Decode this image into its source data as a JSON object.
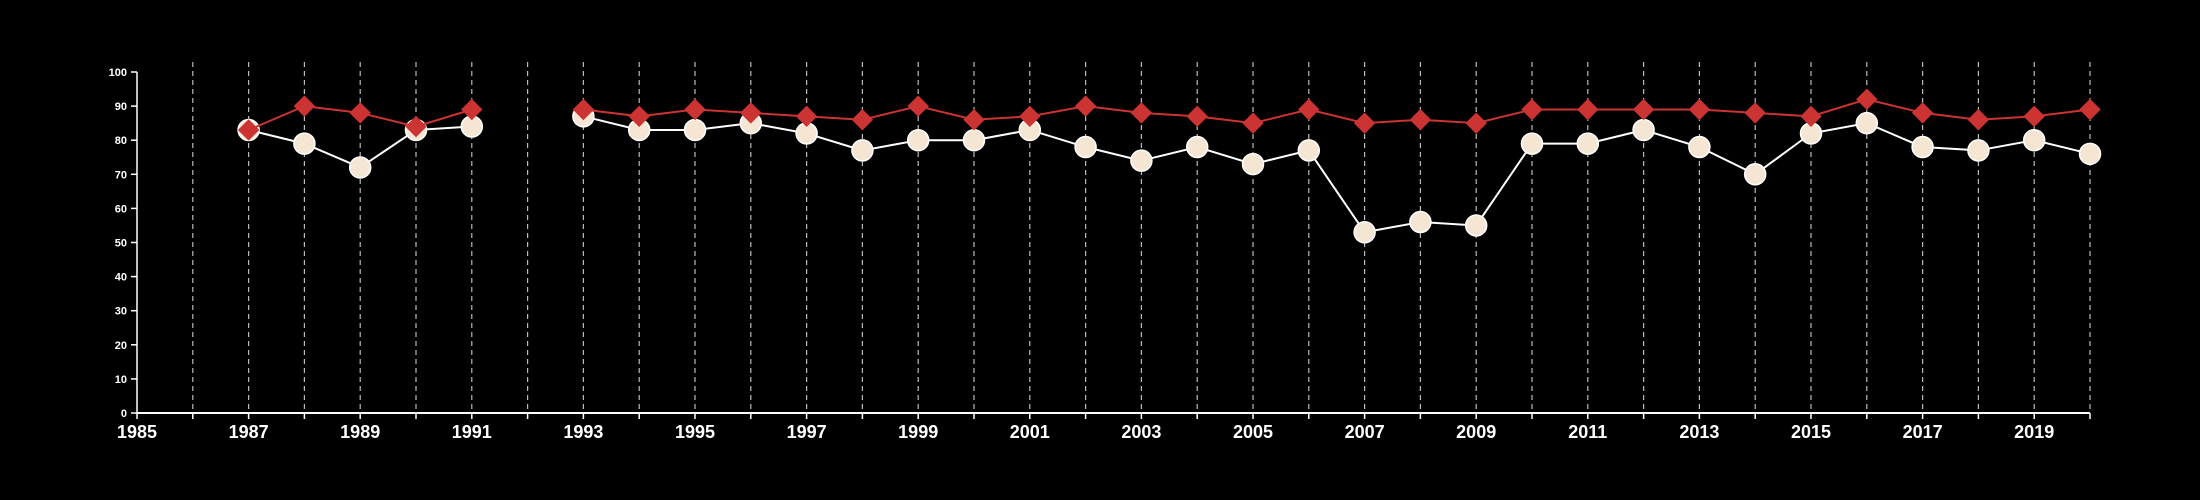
{
  "chart_data": {
    "type": "line",
    "xlim": [
      1985,
      2020
    ],
    "ylim": [
      0,
      100
    ],
    "x_ticks": [
      "1985",
      "1987",
      "1989",
      "1991",
      "1993",
      "1995",
      "1997",
      "1999",
      "2001",
      "2003",
      "2005",
      "2007",
      "2009",
      "2011",
      "2013",
      "2015",
      "2017",
      "2019"
    ],
    "y_ticks": [
      "0",
      "10",
      "20",
      "30",
      "40",
      "50",
      "60",
      "70",
      "80",
      "90",
      "100"
    ],
    "vertical_grid": "dashed, yearly",
    "series": [
      {
        "marker": "diamond",
        "color": "#cc3333",
        "points": [
          [
            1987,
            83
          ],
          [
            1988,
            90
          ],
          [
            1989,
            88
          ],
          [
            1990,
            84
          ],
          [
            1991,
            89
          ],
          [
            1993,
            89
          ],
          [
            1994,
            87
          ],
          [
            1995,
            89
          ],
          [
            1996,
            88
          ],
          [
            1997,
            87
          ],
          [
            1998,
            86
          ],
          [
            1999,
            90
          ],
          [
            2000,
            86
          ],
          [
            2001,
            87
          ],
          [
            2002,
            90
          ],
          [
            2003,
            88
          ],
          [
            2004,
            87
          ],
          [
            2005,
            85
          ],
          [
            2006,
            89
          ],
          [
            2007,
            85
          ],
          [
            2008,
            86
          ],
          [
            2009,
            85
          ],
          [
            2010,
            89
          ],
          [
            2011,
            89
          ],
          [
            2012,
            89
          ],
          [
            2013,
            89
          ],
          [
            2014,
            88
          ],
          [
            2015,
            87
          ],
          [
            2016,
            92
          ],
          [
            2017,
            88
          ],
          [
            2018,
            86
          ],
          [
            2019,
            87
          ],
          [
            2020,
            89
          ]
        ]
      },
      {
        "marker": "circle",
        "color": "#f5e6d3",
        "points": [
          [
            1987,
            83
          ],
          [
            1988,
            79
          ],
          [
            1989,
            72
          ],
          [
            1990,
            83
          ],
          [
            1991,
            84
          ],
          [
            1993,
            87
          ],
          [
            1994,
            83
          ],
          [
            1995,
            83
          ],
          [
            1996,
            85
          ],
          [
            1997,
            82
          ],
          [
            1998,
            77
          ],
          [
            1999,
            80
          ],
          [
            2000,
            80
          ],
          [
            2001,
            83
          ],
          [
            2002,
            78
          ],
          [
            2003,
            74
          ],
          [
            2004,
            78
          ],
          [
            2005,
            73
          ],
          [
            2006,
            77
          ],
          [
            2007,
            53
          ],
          [
            2008,
            56
          ],
          [
            2009,
            55
          ],
          [
            2010,
            79
          ],
          [
            2011,
            79
          ],
          [
            2012,
            83
          ],
          [
            2013,
            78
          ],
          [
            2014,
            70
          ],
          [
            2015,
            82
          ],
          [
            2016,
            85
          ],
          [
            2017,
            78
          ],
          [
            2018,
            77
          ],
          [
            2019,
            80
          ],
          [
            2020,
            76
          ]
        ]
      }
    ]
  }
}
